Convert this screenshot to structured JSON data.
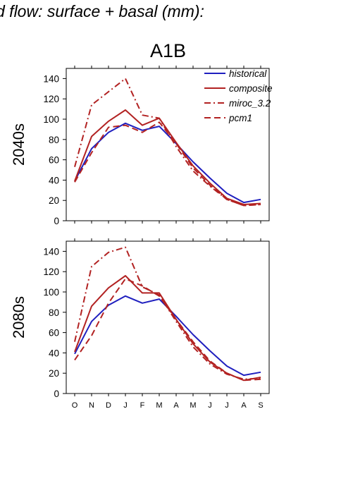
{
  "figure": {
    "title": "d flow: surface + basal (mm):",
    "scenario": "A1B",
    "colors": {
      "historical": "#1f1fbf",
      "model": "#b22222"
    }
  },
  "legend": [
    {
      "name": "historical",
      "color": "#1f1fbf",
      "dash": "solid"
    },
    {
      "name": "composite",
      "color": "#b22222",
      "dash": "solid"
    },
    {
      "name": "miroc_3.2",
      "color": "#b22222",
      "dash": "dashdot"
    },
    {
      "name": "pcm1",
      "color": "#b22222",
      "dash": "dashed"
    }
  ],
  "chart_data": [
    {
      "type": "line",
      "row_label": "2040s",
      "categories": [
        "O",
        "N",
        "D",
        "J",
        "F",
        "M",
        "A",
        "M",
        "J",
        "J",
        "A",
        "S"
      ],
      "ylim": [
        0,
        150
      ],
      "yticks": [
        0,
        20,
        40,
        60,
        80,
        100,
        120,
        140
      ],
      "grid": false,
      "legend_position": "top-right",
      "series": [
        {
          "name": "historical",
          "values": [
            39,
            71,
            87,
            96,
            89,
            93,
            76,
            58,
            42,
            27,
            18,
            21
          ]
        },
        {
          "name": "composite",
          "values": [
            39,
            83,
            98,
            109,
            94,
            101,
            77,
            54,
            37,
            22,
            16,
            17
          ]
        },
        {
          "name": "miroc_3.2",
          "values": [
            53,
            114,
            127,
            140,
            104,
            101,
            73,
            49,
            34,
            21,
            15,
            16
          ]
        },
        {
          "name": "pcm1",
          "values": [
            38,
            67,
            92,
            94,
            87,
            97,
            76,
            52,
            35,
            21,
            15,
            16
          ]
        }
      ]
    },
    {
      "type": "line",
      "row_label": "2080s",
      "categories": [
        "O",
        "N",
        "D",
        "J",
        "F",
        "M",
        "A",
        "M",
        "J",
        "J",
        "A",
        "S"
      ],
      "ylim": [
        0,
        150
      ],
      "yticks": [
        0,
        20,
        40,
        60,
        80,
        100,
        120,
        140
      ],
      "grid": false,
      "series": [
        {
          "name": "historical",
          "values": [
            39,
            71,
            87,
            96,
            89,
            93,
            76,
            58,
            42,
            27,
            18,
            21
          ]
        },
        {
          "name": "composite",
          "values": [
            41,
            86,
            104,
            116,
            99,
            99,
            73,
            49,
            31,
            20,
            13,
            16
          ]
        },
        {
          "name": "miroc_3.2",
          "values": [
            51,
            125,
            139,
            144,
            105,
            97,
            71,
            46,
            29,
            19,
            14,
            15
          ]
        },
        {
          "name": "pcm1",
          "values": [
            33,
            57,
            89,
            113,
            106,
            96,
            73,
            51,
            32,
            20,
            13,
            14
          ]
        }
      ]
    }
  ]
}
